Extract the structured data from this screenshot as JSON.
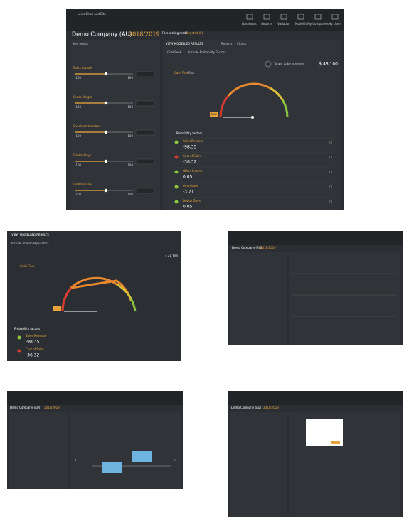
{
  "main": {
    "app_title": "Lee's Bikes and Bits",
    "nav": [
      "Dashboard",
      "Reports",
      "Variation",
      "Model It",
      "My Companies",
      "My Users"
    ],
    "company": "Demo Company (AU)",
    "year": "2018/2019",
    "mode_label": "Forecasting mode",
    "mode_value": "Targeted (E)",
    "left_header": "Key Inputs",
    "sliders": [
      {
        "label": "Sales Growth",
        "min": "-100",
        "max": "100"
      },
      {
        "label": "Gross Margin",
        "min": "-100",
        "max": "100"
      },
      {
        "label": "Overhead Increase",
        "min": "-100",
        "max": "100"
      },
      {
        "label": "Debtor Days",
        "min": "-100",
        "max": "100"
      },
      {
        "label": "Creditor Days",
        "min": "-100",
        "max": "100"
      }
    ],
    "tabs": [
      "VIEW MODELLED RESULTS",
      "Reports",
      "Charts"
    ],
    "subtabs": [
      "Goal Seek",
      "Include Probability Factors"
    ],
    "target_label": "Target to be achieved",
    "target_value": "$ 48,100",
    "gauge_title": "Cash Flow",
    "gauge_status": "Risk",
    "gauge_marker": "Low",
    "factors_title": "Probability factors",
    "factors": [
      {
        "label": "Sales Revenue",
        "value": "-98.35",
        "status": "good"
      },
      {
        "label": "Cost of Sales",
        "value": "-36.32",
        "status": "bad"
      },
      {
        "label": "Other Income",
        "value": "0.05",
        "status": "good"
      },
      {
        "label": "Overheads",
        "value": "-3.71",
        "status": "good"
      },
      {
        "label": "Debtor Days",
        "value": "0.05",
        "status": "good"
      }
    ]
  }
}
